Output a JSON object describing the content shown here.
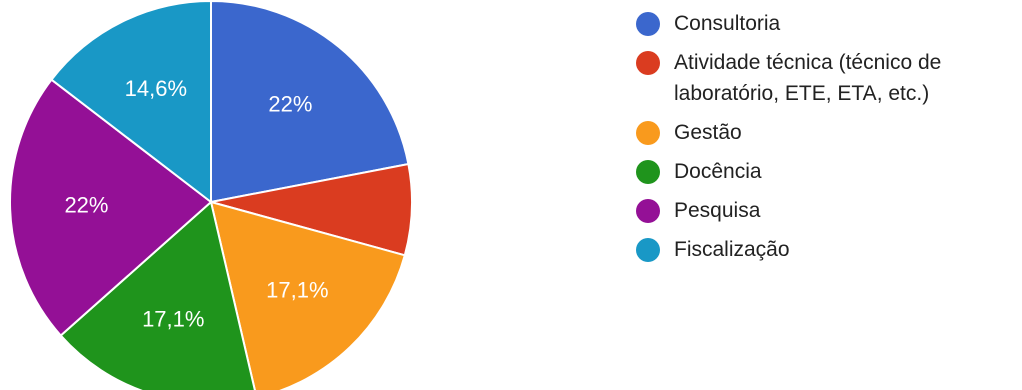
{
  "chart_data": {
    "type": "pie",
    "title": "",
    "start_angle_deg": 90,
    "direction": "clockwise",
    "slices": [
      {
        "label": "Consultoria",
        "value": 22,
        "display": "22%",
        "color": "#3b67cd"
      },
      {
        "label": "Atividade técnica (técnico de laboratório, ETE, ETA, etc.)",
        "value": 7.3,
        "display": "",
        "color": "#da3c20"
      },
      {
        "label": "Gestão",
        "value": 17.1,
        "display": "17,1%",
        "color": "#f99a1d"
      },
      {
        "label": "Docência",
        "value": 17.1,
        "display": "17,1%",
        "color": "#1f941c"
      },
      {
        "label": "Pesquisa",
        "value": 22,
        "display": "22%",
        "color": "#941096"
      },
      {
        "label": "Fiscalização",
        "value": 14.6,
        "display": "14,6%",
        "color": "#1998c6"
      }
    ],
    "legend_position": "right"
  }
}
